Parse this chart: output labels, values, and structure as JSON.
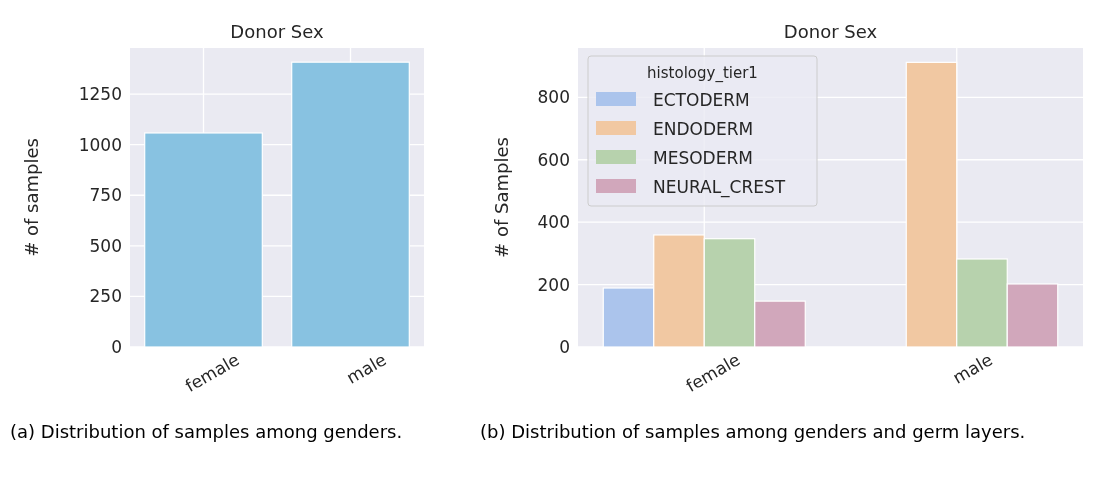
{
  "chart_data": [
    {
      "type": "bar",
      "title": "Donor Sex",
      "ylabel": "# of samples",
      "categories": [
        "female",
        "male"
      ],
      "values": [
        1058,
        1408
      ],
      "color": "#88c2e1",
      "ylim": [
        0,
        1478
      ],
      "yticks": [
        0,
        250,
        500,
        750,
        1000,
        1250
      ],
      "grid": true,
      "legend": false,
      "annotations": [
        "(a) Distribution of samples among genders."
      ]
    },
    {
      "type": "bar",
      "title": "Donor Sex",
      "ylabel": "# of Samples",
      "legend_title": "histology_tier1",
      "categories": [
        "female",
        "male"
      ],
      "series": [
        {
          "name": "ECTODERM",
          "color": "#abc4ec",
          "values": [
            189,
            null
          ]
        },
        {
          "name": "ENDODERM",
          "color": "#f1c8a2",
          "values": [
            359,
            912
          ]
        },
        {
          "name": "MESODERM",
          "color": "#b7d2ad",
          "values": [
            347,
            282
          ]
        },
        {
          "name": "NEURAL_CREST",
          "color": "#d1a7bb",
          "values": [
            147,
            202
          ]
        }
      ],
      "ylim": [
        0,
        958
      ],
      "yticks": [
        0,
        200,
        400,
        600,
        800
      ],
      "grid": true,
      "legend": "top left",
      "annotations": [
        "(b) Distribution of samples among genders and germ layers."
      ]
    }
  ]
}
